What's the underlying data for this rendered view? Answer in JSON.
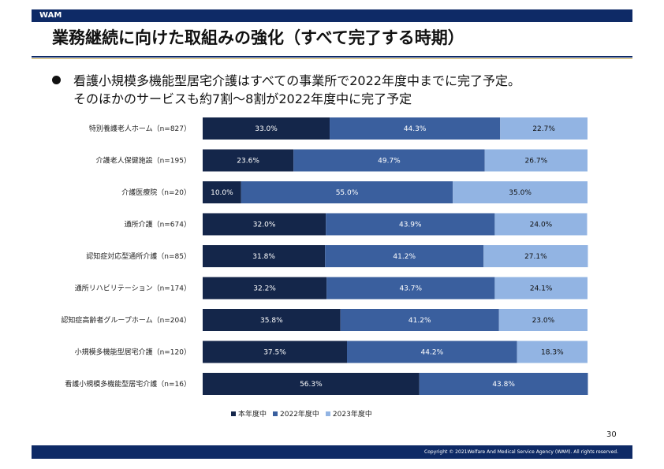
{
  "header": {
    "brand": "WAM"
  },
  "title": "業務継続に向けた取組みの強化（すべて完了する時期）",
  "bullet": {
    "line1": "看護小規模多機能型居宅介護はすべての事業所で2022年度中までに完了予定。",
    "line2": "そのほかのサービスも約7割～8割が2022年度中に完了予定"
  },
  "colors": {
    "navy": "#0e2a66",
    "series": [
      "#14264a",
      "#3a5f9e",
      "#92b4e3"
    ]
  },
  "chart_data": {
    "type": "bar",
    "orientation": "horizontal",
    "stacked": "percent",
    "categories": [
      "特別養護老人ホーム（n=827）",
      "介護老人保健施設（n=195）",
      "介護医療院（n=20）",
      "通所介護（n=674）",
      "認知症対応型通所介護（n=85）",
      "通所リハビリテーション（n=174）",
      "認知症高齢者グループホーム（n=204）",
      "小規模多機能型居宅介護（n=120）",
      "看護小規模多機能型居宅介護（n=16）"
    ],
    "series": [
      {
        "name": "本年度中",
        "values": [
          33.0,
          23.6,
          10.0,
          32.0,
          31.8,
          32.2,
          35.8,
          37.5,
          56.3
        ]
      },
      {
        "name": "2022年度中",
        "values": [
          44.3,
          49.7,
          55.0,
          43.9,
          41.2,
          43.7,
          41.2,
          44.2,
          43.8
        ]
      },
      {
        "name": "2023年度中",
        "values": [
          22.7,
          26.7,
          35.0,
          24.0,
          27.1,
          24.1,
          23.0,
          18.3,
          null
        ]
      }
    ],
    "xlim": [
      0,
      100
    ],
    "legend_position": "bottom"
  },
  "page_number": "30",
  "footer": {
    "copyright": "Copyright © 2021Welfare And Medical Service Agency (WAM). All rights reserved."
  }
}
